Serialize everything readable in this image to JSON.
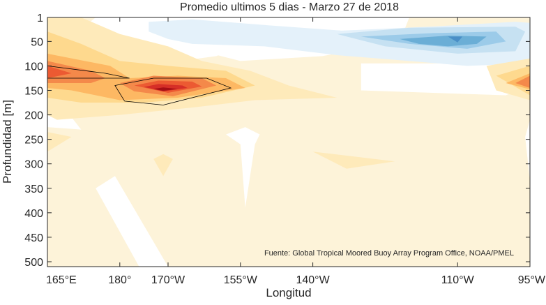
{
  "chart_data": {
    "type": "heatmap",
    "title": "Promedio ultimos 5 dias - Marzo 27 de 2018",
    "xlabel": "Longitud",
    "ylabel": "Profundidad [m]",
    "source_note": "Fuente: Global Tropical Moored Buoy Array Program Office, NOAA/PMEL",
    "x_ticks": [
      {
        "value": 165,
        "label": "165°E"
      },
      {
        "value": 180,
        "label": "180°"
      },
      {
        "value": 190,
        "label": "170°W"
      },
      {
        "value": 205,
        "label": "155°W"
      },
      {
        "value": 220,
        "label": "140°W"
      },
      {
        "value": 250,
        "label": "110°W"
      },
      {
        "value": 265,
        "label": "95°W"
      }
    ],
    "y_ticks": [
      {
        "value": 1,
        "label": "1"
      },
      {
        "value": 50,
        "label": "50"
      },
      {
        "value": 100,
        "label": "100"
      },
      {
        "value": 150,
        "label": "150"
      },
      {
        "value": 200,
        "label": "200"
      },
      {
        "value": 250,
        "label": "250"
      },
      {
        "value": 300,
        "label": "300"
      },
      {
        "value": 350,
        "label": "350"
      },
      {
        "value": 400,
        "label": "400"
      },
      {
        "value": 450,
        "label": "450"
      },
      {
        "value": 500,
        "label": "500"
      }
    ],
    "xlim": [
      165,
      265
    ],
    "ylim": [
      1,
      510
    ],
    "y_reversed": true,
    "colors": {
      "neutral": "#ffffff",
      "warm": [
        "#fdf3d9",
        "#feeaba",
        "#fed98e",
        "#fdb863",
        "#f4894a",
        "#ec5a32",
        "#d62f27",
        "#a50f15",
        "#1a0000"
      ],
      "cool": [
        "#e4f1fa",
        "#c6e1f2",
        "#9ccbe9",
        "#6baed6",
        "#4a8fc7"
      ]
    },
    "regions": [
      {
        "level": 1,
        "points": [
          [
            165,
            1
          ],
          [
            265,
            1
          ],
          [
            265,
            510
          ],
          [
            165,
            510
          ]
        ]
      },
      {
        "level": 0,
        "points": [
          [
            175,
            1
          ],
          [
            205,
            1
          ],
          [
            212,
            30
          ],
          [
            200,
            80
          ],
          [
            185,
            100
          ],
          [
            176,
            80
          ],
          [
            170,
            40
          ]
        ]
      },
      {
        "level": 0,
        "points": [
          [
            190,
            1
          ],
          [
            240,
            1
          ],
          [
            238,
            50
          ],
          [
            222,
            80
          ],
          [
            205,
            90
          ],
          [
            193,
            60
          ]
        ]
      },
      {
        "level": 0,
        "points": [
          [
            230,
            95
          ],
          [
            255,
            95
          ],
          [
            263,
            85
          ],
          [
            265,
            140
          ],
          [
            260,
            160
          ],
          [
            230,
            150
          ]
        ]
      },
      {
        "level": 0,
        "points": [
          [
            175,
            350
          ],
          [
            184,
            510
          ],
          [
            190,
            510
          ],
          [
            179,
            325
          ]
        ]
      },
      {
        "level": 0,
        "points": [
          [
            202,
            240
          ],
          [
            205,
            260
          ],
          [
            206,
            390
          ],
          [
            208,
            260
          ],
          [
            209,
            240
          ],
          [
            206,
            225
          ]
        ]
      },
      {
        "level": 0,
        "points": [
          [
            264,
            245
          ],
          [
            265,
            210
          ],
          [
            265,
            335
          ]
        ]
      },
      {
        "level": 0,
        "points": [
          [
            165,
            155
          ],
          [
            168,
            180
          ],
          [
            172,
            230
          ],
          [
            165,
            225
          ]
        ]
      },
      {
        "level": -1,
        "points": [
          [
            186,
            10
          ],
          [
            195,
            5
          ],
          [
            212,
            18
          ],
          [
            226,
            28
          ],
          [
            244,
            20
          ],
          [
            262,
            10
          ],
          [
            265,
            12
          ],
          [
            265,
            95
          ],
          [
            252,
            100
          ],
          [
            240,
            90
          ],
          [
            225,
            78
          ],
          [
            210,
            60
          ],
          [
            195,
            55
          ],
          [
            190,
            45
          ],
          [
            186,
            30
          ]
        ]
      },
      {
        "level": -2,
        "points": [
          [
            225,
            35
          ],
          [
            240,
            22
          ],
          [
            262,
            20
          ],
          [
            264,
            30
          ],
          [
            262,
            70
          ],
          [
            250,
            75
          ],
          [
            235,
            60
          ]
        ]
      },
      {
        "level": -3,
        "points": [
          [
            230,
            40
          ],
          [
            245,
            33
          ],
          [
            258,
            30
          ],
          [
            260,
            50
          ],
          [
            252,
            65
          ],
          [
            240,
            55
          ]
        ]
      },
      {
        "level": -4,
        "points": [
          [
            238,
            45
          ],
          [
            248,
            38
          ],
          [
            256,
            40
          ],
          [
            254,
            55
          ],
          [
            248,
            60
          ],
          [
            242,
            55
          ]
        ]
      },
      {
        "level": -5,
        "points": [
          [
            248,
            40
          ],
          [
            251,
            40
          ],
          [
            250,
            52
          ]
        ]
      },
      {
        "level": 2,
        "points": [
          [
            165,
            1
          ],
          [
            172,
            1
          ],
          [
            180,
            35
          ],
          [
            190,
            60
          ],
          [
            197,
            90
          ],
          [
            207,
            110
          ],
          [
            215,
            140
          ],
          [
            225,
            165
          ],
          [
            208,
            170
          ],
          [
            195,
            185
          ],
          [
            180,
            200
          ],
          [
            167,
            210
          ],
          [
            165,
            200
          ]
        ]
      },
      {
        "level": 2,
        "points": [
          [
            220,
            275
          ],
          [
            227,
            310
          ],
          [
            237,
            295
          ]
        ]
      },
      {
        "level": 2,
        "points": [
          [
            187,
            290
          ],
          [
            189,
            325
          ],
          [
            191,
            290
          ],
          [
            189,
            280
          ]
        ]
      },
      {
        "level": 2,
        "points": [
          [
            165,
            275
          ],
          [
            170,
            245
          ],
          [
            165,
            235
          ]
        ]
      },
      {
        "level": 2,
        "points": [
          [
            256,
            100
          ],
          [
            265,
            85
          ],
          [
            265,
            170
          ],
          [
            258,
            150
          ]
        ]
      },
      {
        "level": 3,
        "points": [
          [
            165,
            30
          ],
          [
            172,
            55
          ],
          [
            180,
            90
          ],
          [
            190,
            100
          ],
          [
            202,
            110
          ],
          [
            208,
            140
          ],
          [
            197,
            165
          ],
          [
            185,
            175
          ],
          [
            172,
            175
          ],
          [
            165,
            165
          ]
        ]
      },
      {
        "level": 3,
        "points": [
          [
            258,
            120
          ],
          [
            265,
            100
          ],
          [
            265,
            160
          ]
        ]
      },
      {
        "level": 4,
        "points": [
          [
            165,
            75
          ],
          [
            178,
            100
          ],
          [
            182,
            125
          ],
          [
            192,
            120
          ],
          [
            202,
            125
          ],
          [
            206,
            145
          ],
          [
            192,
            165
          ],
          [
            180,
            170
          ],
          [
            170,
            150
          ],
          [
            165,
            145
          ]
        ]
      },
      {
        "level": 4,
        "points": [
          [
            260,
            135
          ],
          [
            265,
            115
          ],
          [
            265,
            148
          ]
        ]
      },
      {
        "level": 5,
        "points": [
          [
            165,
            90
          ],
          [
            174,
            110
          ],
          [
            177,
            125
          ],
          [
            174,
            135
          ],
          [
            165,
            135
          ]
        ]
      },
      {
        "level": 5,
        "points": [
          [
            180,
            135
          ],
          [
            187,
            120
          ],
          [
            197,
            125
          ],
          [
            200,
            140
          ],
          [
            191,
            162
          ],
          [
            183,
            152
          ]
        ]
      },
      {
        "level": 5,
        "points": [
          [
            262,
            135
          ],
          [
            265,
            120
          ],
          [
            265,
            145
          ]
        ]
      },
      {
        "level": 6,
        "points": [
          [
            165,
            100
          ],
          [
            170,
            115
          ],
          [
            165,
            125
          ]
        ]
      },
      {
        "level": 6,
        "points": [
          [
            183,
            140
          ],
          [
            188,
            130
          ],
          [
            195,
            132
          ],
          [
            197,
            142
          ],
          [
            190,
            155
          ]
        ]
      },
      {
        "level": 7,
        "points": [
          [
            185,
            143
          ],
          [
            188,
            137
          ],
          [
            193,
            140
          ],
          [
            194,
            145
          ],
          [
            189,
            152
          ]
        ]
      },
      {
        "level": 8,
        "points": [
          [
            187,
            147
          ],
          [
            189,
            144
          ],
          [
            192,
            147
          ],
          [
            189,
            151
          ]
        ]
      }
    ],
    "contour_lines": [
      [
        [
          165,
          100
        ],
        [
          177,
          115
        ],
        [
          182,
          125
        ],
        [
          165,
          125
        ]
      ],
      [
        [
          179,
          140
        ],
        [
          187,
          125
        ],
        [
          198,
          125
        ],
        [
          203,
          145
        ],
        [
          189,
          180
        ],
        [
          181,
          172
        ]
      ]
    ]
  }
}
